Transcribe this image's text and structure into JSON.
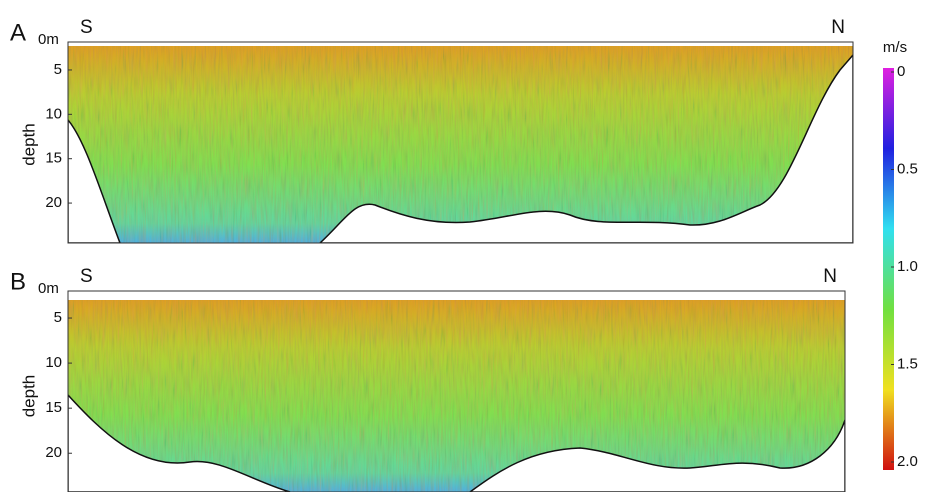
{
  "chart_data": [
    {
      "type": "heatmap",
      "panel_label": "A",
      "top_label": "0m",
      "left_label": "S",
      "right_label": "N",
      "y_label": "depth",
      "ylim": [
        2.3,
        24.5
      ],
      "yticks": [
        5,
        10,
        15,
        20
      ]
    },
    {
      "type": "heatmap",
      "panel_label": "B",
      "top_label": "0m",
      "left_label": "S",
      "right_label": "N",
      "y_label": "depth",
      "ylim": [
        3,
        24.3
      ],
      "yticks": [
        5,
        10,
        15,
        20
      ]
    }
  ],
  "colorbar": {
    "unit": "m/s",
    "ylim": [
      0,
      2
    ],
    "yticks": [
      0,
      0.5,
      {
        "value": 1,
        "label": "1.0"
      },
      1.5,
      {
        "value": 2,
        "label": "2.0"
      }
    ],
    "colors": [
      "#e020e0",
      "#2020e0",
      "#30e0f0",
      "#70e040",
      "#f0e020",
      "#d01010"
    ]
  }
}
